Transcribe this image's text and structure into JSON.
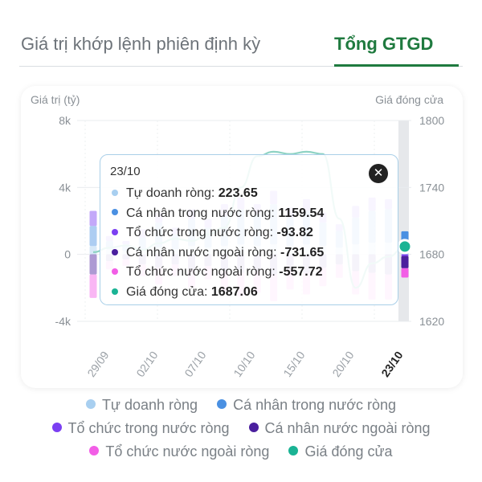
{
  "tabs": [
    {
      "label": "Giá trị khớp lệnh phiên định kỳ",
      "active": false
    },
    {
      "label": "Tổng GTGD",
      "active": true
    }
  ],
  "colors": {
    "accent": "#1f7a3f",
    "tu_doanh": "#a8cff0",
    "ca_nhan_trong_nuoc": "#4a90e2",
    "to_chuc_trong_nuoc": "#7b3ff2",
    "ca_nhan_nuoc_ngoai": "#4a1f9e",
    "to_chuc_nuoc_ngoai": "#f25ee6",
    "gia_dong_cua": "#1ab394"
  },
  "tooltip": {
    "date": "23/10",
    "close_icon": "close-icon",
    "rows": [
      {
        "label": "Tự doanh ròng: ",
        "value": "223.65",
        "color": "#a8cff0"
      },
      {
        "label": "Cá nhân trong nước ròng: ",
        "value": "1159.54",
        "color": "#4a90e2"
      },
      {
        "label": "Tổ chức trong nước ròng: ",
        "value": "-93.82",
        "color": "#7b3ff2"
      },
      {
        "label": "Cá nhân nước ngoài ròng: ",
        "value": "-731.65",
        "color": "#4a1f9e"
      },
      {
        "label": "Tổ chức nước ngoài ròng: ",
        "value": "-557.72",
        "color": "#f25ee6"
      },
      {
        "label": "Giá đóng cửa: ",
        "value": "1687.06",
        "color": "#1ab394"
      }
    ]
  },
  "legend": [
    {
      "label": "Tự doanh ròng",
      "color": "#a8cff0"
    },
    {
      "label": "Cá nhân trong nước ròng",
      "color": "#4a90e2"
    },
    {
      "label": "Tổ chức trong nước ròng",
      "color": "#7b3ff2"
    },
    {
      "label": "Cá nhân nước ngoài ròng",
      "color": "#4a1f9e"
    },
    {
      "label": "Tổ chức nước ngoài ròng",
      "color": "#f25ee6"
    },
    {
      "label": "Giá đóng cửa",
      "color": "#1ab394"
    }
  ],
  "chart_data": {
    "type": "bar",
    "ylabel_left": "Giá trị (tỷ)",
    "ylabel_right": "Giá đóng cửa",
    "yticks_left": [
      "8k",
      "4k",
      "0",
      "-4k"
    ],
    "yticks_right": [
      "1800",
      "1740",
      "1680",
      "1620"
    ],
    "ylim_left": [
      -4000,
      8000
    ],
    "ylim_right": [
      1620,
      1800
    ],
    "xticks": [
      "29/09",
      "02/10",
      "07/10",
      "10/10",
      "15/10",
      "20/10",
      "23/10"
    ],
    "highlighted": "23/10",
    "grid": true,
    "series_names": [
      "Tự doanh ròng",
      "Cá nhân trong nước ròng",
      "Tổ chức trong nước ròng",
      "Cá nhân nước ngoài ròng",
      "Tổ chức nước ngoài ròng"
    ],
    "bars": [
      [
        500,
        1200,
        900,
        -1200,
        -1400
      ],
      [
        300,
        500,
        300,
        -400,
        -500
      ],
      [
        200,
        400,
        200,
        -300,
        -400
      ],
      [
        300,
        700,
        500,
        -600,
        -700
      ],
      [
        400,
        1500,
        600,
        -800,
        -1000
      ],
      [
        300,
        900,
        400,
        -600,
        -700
      ],
      [
        500,
        1600,
        600,
        -900,
        -1100
      ],
      [
        400,
        1200,
        500,
        -700,
        -800
      ],
      [
        500,
        1800,
        700,
        -1000,
        -1200
      ],
      [
        600,
        2100,
        700,
        -1100,
        -1400
      ],
      [
        500,
        1900,
        600,
        -1000,
        -1300
      ],
      [
        600,
        2400,
        800,
        -1200,
        -1600
      ],
      [
        500,
        1700,
        600,
        -900,
        -1200
      ],
      [
        600,
        2000,
        700,
        -1100,
        -1300
      ],
      [
        500,
        1400,
        600,
        -800,
        -1100
      ],
      [
        400,
        1000,
        400,
        -600,
        -800
      ],
      [
        600,
        1600,
        700,
        -1000,
        -1400
      ],
      [
        700,
        1900,
        800,
        -1100,
        -1600
      ],
      [
        700,
        2000,
        600,
        -1200,
        -1500
      ],
      [
        223.65,
        1159.54,
        -93.82,
        -731.65,
        -557.72
      ]
    ],
    "close_price": [
      1682,
      1686,
      1688,
      1684,
      1690,
      1694,
      1692,
      1698,
      1704,
      1740,
      1768,
      1772,
      1770,
      1772,
      1770,
      1712,
      1650,
      1672,
      1678,
      1687.06
    ]
  }
}
